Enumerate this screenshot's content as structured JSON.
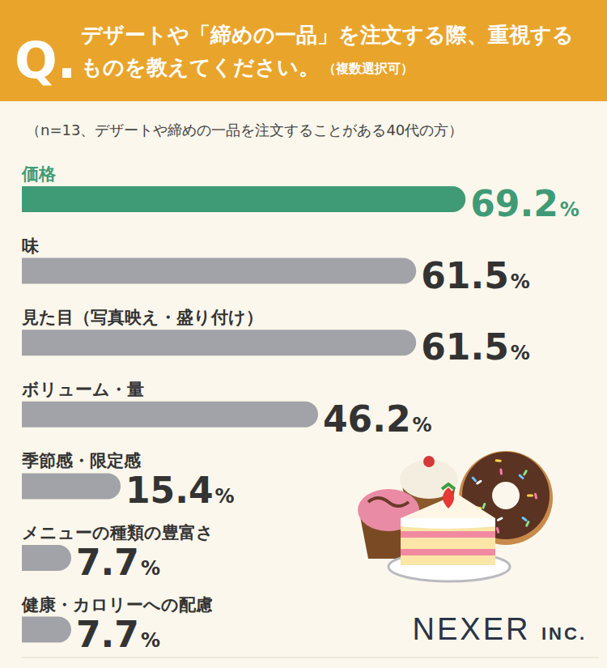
{
  "chart_data": {
    "type": "bar",
    "orientation": "horizontal",
    "title": "デザートや「締めの一品」を注文する際、重視するものを教えてください。",
    "subtitle": "（n=13、デザートや締めの一品を注文することがある40代の方）",
    "annotations": [
      "Q.",
      "（複数選択可）",
      "NEXER INC."
    ],
    "categories": [
      "価格",
      "味",
      "見た目（写真映え・盛り付け）",
      "ボリューム・量",
      "季節感・限定感",
      "メニューの種類の豊富さ",
      "健康・カロリーへの配慮"
    ],
    "values": [
      69.2,
      61.5,
      61.5,
      46.2,
      15.4,
      7.7,
      7.7
    ],
    "value_labels": [
      "69.2%",
      "61.5%",
      "61.5%",
      "46.2%",
      "15.4%",
      "7.7%",
      "7.7%"
    ],
    "colors": [
      "#3f9b76",
      "#a2a3a8",
      "#a2a3a8",
      "#a2a3a8",
      "#a2a3a8",
      "#a2a3a8",
      "#a2a3a8"
    ],
    "xlim": [
      0,
      90
    ],
    "data_labels": true,
    "tick_labels": false,
    "grid": false
  }
}
